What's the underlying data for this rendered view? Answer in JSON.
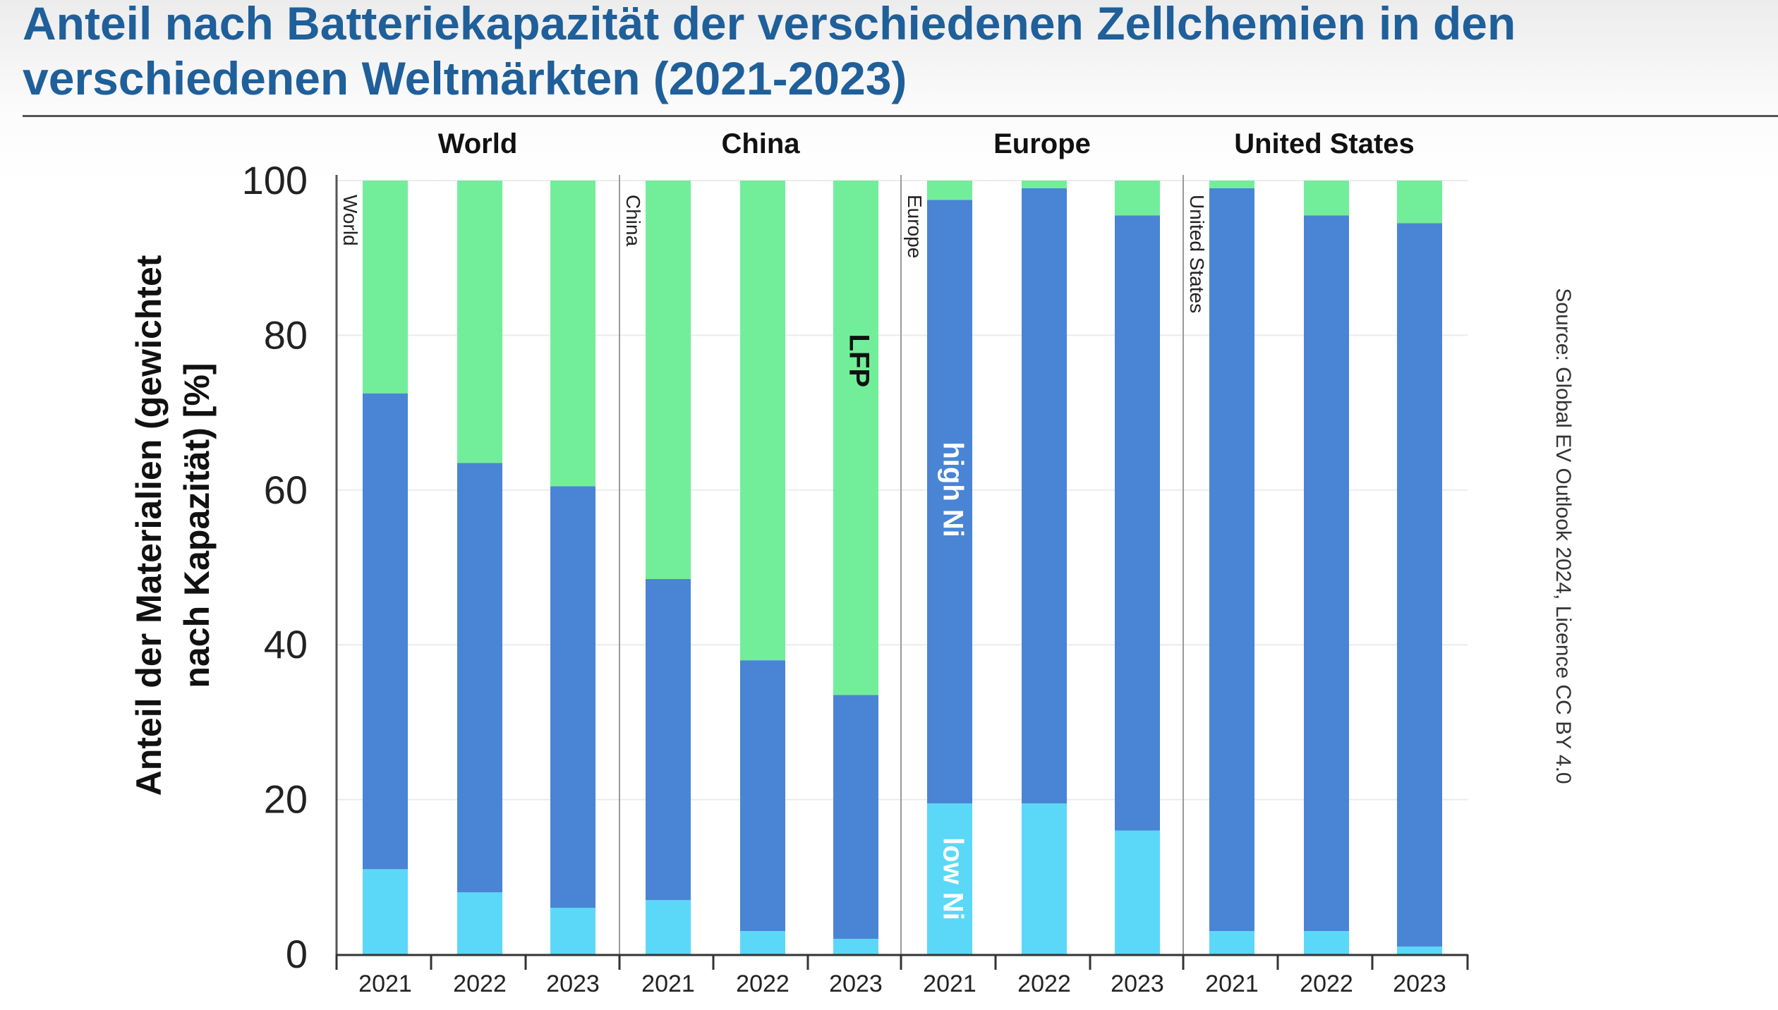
{
  "title": "Anteil nach Batteriekapazität der verschiedenen Zellchemien in den verschiedenen Weltmärkten (2021-2023)",
  "source": "Source: Global EV Outlook 2024, Licence CC BY 4.0",
  "colors": {
    "title": "#1f5f9a",
    "low_ni": "#5bd8f8",
    "high_ni": "#4a84d4",
    "lfp": "#72ee9a",
    "grid": "#ebebeb",
    "axis": "#333333"
  },
  "chart_data": {
    "type": "bar",
    "stacked": true,
    "ylabel_lines": [
      "Anteil der Materialien (gewichtet",
      "nach Kapazität) [%]"
    ],
    "ylim": [
      0,
      100
    ],
    "yticks": [
      0,
      20,
      40,
      60,
      80,
      100
    ],
    "categories": [
      "2021",
      "2022",
      "2023"
    ],
    "series_names": [
      "low Ni",
      "high Ni",
      "LFP"
    ],
    "panels": [
      {
        "name": "World",
        "corner_label": "World",
        "stacks": [
          {
            "year": "2021",
            "low_ni": 11,
            "high_ni": 61.5,
            "lfp": 27.5
          },
          {
            "year": "2022",
            "low_ni": 8,
            "high_ni": 55.5,
            "lfp": 36.5
          },
          {
            "year": "2023",
            "low_ni": 6,
            "high_ni": 54.5,
            "lfp": 39.5
          }
        ]
      },
      {
        "name": "China",
        "corner_label": "China",
        "stacks": [
          {
            "year": "2021",
            "low_ni": 7,
            "high_ni": 41.5,
            "lfp": 51.5
          },
          {
            "year": "2022",
            "low_ni": 3,
            "high_ni": 35,
            "lfp": 62
          },
          {
            "year": "2023",
            "low_ni": 2,
            "high_ni": 31.5,
            "lfp": 66.5
          }
        ]
      },
      {
        "name": "Europe",
        "corner_label": "Europe",
        "stacks": [
          {
            "year": "2021",
            "low_ni": 19.5,
            "high_ni": 78,
            "lfp": 2.5
          },
          {
            "year": "2022",
            "low_ni": 19.5,
            "high_ni": 79.5,
            "lfp": 1
          },
          {
            "year": "2023",
            "low_ni": 16,
            "high_ni": 79.5,
            "lfp": 4.5
          }
        ]
      },
      {
        "name": "United States",
        "corner_label": "United States",
        "stacks": [
          {
            "year": "2021",
            "low_ni": 3,
            "high_ni": 96,
            "lfp": 1
          },
          {
            "year": "2022",
            "low_ni": 3,
            "high_ni": 92.5,
            "lfp": 4.5
          },
          {
            "year": "2023",
            "low_ni": 1,
            "high_ni": 93.5,
            "lfp": 5.5
          }
        ]
      }
    ],
    "annotations": [
      {
        "text": "LFP",
        "panel": "China",
        "year": "2023",
        "series": "lfp"
      },
      {
        "text": "high Ni",
        "panel": "Europe",
        "year": "2021",
        "series": "high_ni"
      },
      {
        "text": "low Ni",
        "panel": "Europe",
        "year": "2021",
        "series": "low_ni"
      }
    ]
  }
}
